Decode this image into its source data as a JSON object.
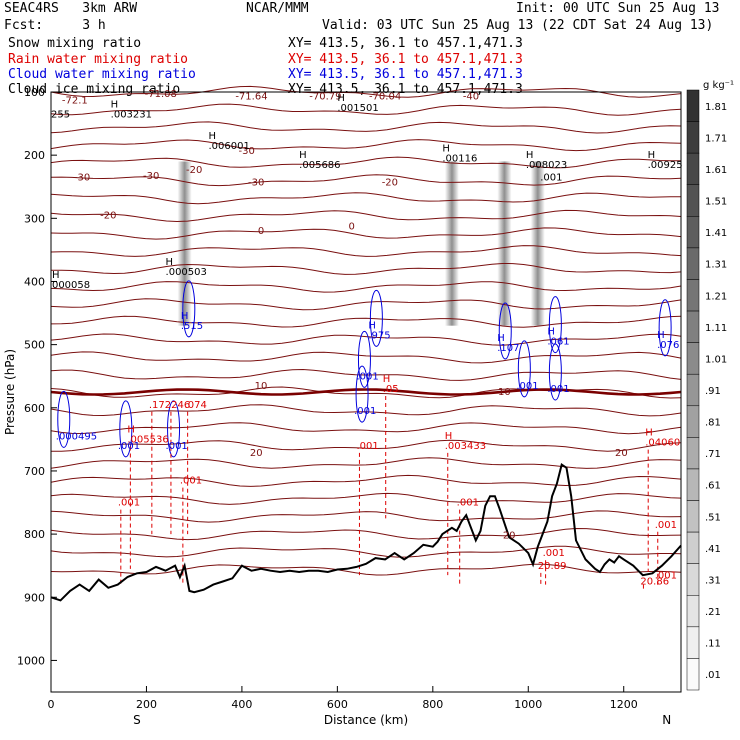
{
  "header": {
    "model": "SEAC4RS   3km ARW",
    "forecast": "Fcst:     3 h",
    "center": "NCAR/MMM",
    "init": "Init: 00 UTC Sun 25 Aug 13",
    "valid": "Valid: 03 UTC Sun 25 Aug 13 (22 CDT Sat 24 Aug 13)",
    "xy": "XY= 413.5, 36.1 to 457.1,471.3"
  },
  "legend": [
    {
      "text": "Snow mixing ratio",
      "color": "#000000"
    },
    {
      "text": "Rain water mixing ratio",
      "color": "#dd0000"
    },
    {
      "text": "Cloud water mixing ratio",
      "color": "#0000dd"
    },
    {
      "text": "Cloud ice mixing ratio",
      "color": "#000000"
    }
  ],
  "colorbar": {
    "unit": "g kg⁻¹",
    "levels": [
      "1.81",
      "1.71",
      "1.61",
      "1.51",
      "1.41",
      "1.31",
      "1.21",
      "1.11",
      "1.01",
      ".91",
      ".81",
      ".71",
      ".61",
      ".51",
      ".41",
      ".31",
      ".21",
      ".11",
      ".01"
    ]
  },
  "chart_data": {
    "type": "cross-section",
    "xlabel": "Distance (km)",
    "ylabel": "Pressure (hPa)",
    "xlim": [
      0,
      1320
    ],
    "ylim": [
      1050,
      100
    ],
    "x_ticks": [
      "0",
      "200",
      "400",
      "600",
      "800",
      "1000",
      "1200"
    ],
    "y_ticks": [
      "100",
      "200",
      "300",
      "400",
      "500",
      "600",
      "700",
      "800",
      "900",
      "1000"
    ],
    "x_end_labels": {
      "left": "S",
      "right": "N"
    },
    "isotherm_labels": [
      "-72.1",
      "-71.08",
      "-71.64",
      "-70.79",
      "-70.04",
      "-40",
      "-30",
      "-30",
      "-30",
      "-30",
      "-20",
      "-20",
      "-20",
      "0",
      "0",
      "10",
      "10",
      "20",
      "20",
      "20"
    ],
    "temperature_labels_deg_c": [
      -70,
      -40,
      -30,
      -20,
      0,
      10,
      20
    ],
    "freezing_level_hpa": 575,
    "cloud_ice_maxima": [
      {
        "label": "H",
        "value": ".003231",
        "x_km": 125,
        "p_hpa": 140
      },
      {
        "label": "H",
        "value": ".001501",
        "x_km": 600,
        "p_hpa": 130
      },
      {
        "label": "H",
        "value": ".006001",
        "x_km": 330,
        "p_hpa": 190
      },
      {
        "label": "H",
        "value": ".005686",
        "x_km": 520,
        "p_hpa": 220
      },
      {
        "label": "H",
        "value": ".00116",
        "x_km": 820,
        "p_hpa": 210
      },
      {
        "label": "H",
        "value": ".008023",
        "x_km": 995,
        "p_hpa": 220
      },
      {
        "label": "H",
        "value": ".00925",
        "x_km": 1250,
        "p_hpa": 220
      },
      {
        "label": "H",
        "value": ".000503",
        "x_km": 240,
        "p_hpa": 390
      },
      {
        "label": "H",
        "value": "000058",
        "x_km": 2,
        "p_hpa": 410
      },
      {
        "label": "",
        "value": ".001",
        "x_km": 1025,
        "p_hpa": 240
      },
      {
        "label": "",
        "value": "255",
        "x_km": 0,
        "p_hpa": 140
      }
    ],
    "cloud_water_maxima": [
      {
        "label": "H",
        "value": ".515",
        "x_km": 272,
        "p_hpa": 475
      },
      {
        "label": "H",
        "value": ".975",
        "x_km": 665,
        "p_hpa": 490
      },
      {
        "label": "H",
        "value": ".107",
        "x_km": 935,
        "p_hpa": 510
      },
      {
        "label": "H",
        "value": ".061",
        "x_km": 1040,
        "p_hpa": 500
      },
      {
        "label": "H",
        "value": ".076",
        "x_km": 1270,
        "p_hpa": 505
      },
      {
        "label": "",
        "value": ".001",
        "x_km": 640,
        "p_hpa": 555
      },
      {
        "label": "",
        "value": ".001",
        "x_km": 975,
        "p_hpa": 570
      },
      {
        "label": "",
        "value": ".001",
        "x_km": 1040,
        "p_hpa": 575
      },
      {
        "label": "",
        "value": ".001",
        "x_km": 635,
        "p_hpa": 610
      },
      {
        "label": "",
        "value": ".000495",
        "x_km": 10,
        "p_hpa": 650
      },
      {
        "label": "",
        "value": ".001",
        "x_km": 140,
        "p_hpa": 665
      },
      {
        "label": "",
        "value": ".001",
        "x_km": 240,
        "p_hpa": 665
      }
    ],
    "rain_water_maxima": [
      {
        "label": "",
        "value": ".172",
        "x_km": 205,
        "p_hpa": 600
      },
      {
        "label": "",
        "value": ".246",
        "x_km": 245,
        "p_hpa": 600
      },
      {
        "label": "",
        "value": ".074",
        "x_km": 280,
        "p_hpa": 600
      },
      {
        "label": "H",
        "value": ".05",
        "x_km": 695,
        "p_hpa": 575
      },
      {
        "label": "H",
        "value": ".005536",
        "x_km": 160,
        "p_hpa": 655
      },
      {
        "label": "H",
        "value": ".003433",
        "x_km": 825,
        "p_hpa": 665
      },
      {
        "label": "H",
        "value": ".04060",
        "x_km": 1245,
        "p_hpa": 660
      },
      {
        "label": "",
        "value": ".001",
        "x_km": 640,
        "p_hpa": 665
      },
      {
        "label": "",
        "value": ".001",
        "x_km": 270,
        "p_hpa": 720
      },
      {
        "label": "",
        "value": ".001",
        "x_km": 140,
        "p_hpa": 755
      },
      {
        "label": "",
        "value": ".001",
        "x_km": 850,
        "p_hpa": 755
      },
      {
        "label": "",
        "value": ".001",
        "x_km": 1030,
        "p_hpa": 835
      },
      {
        "label": "",
        "value": ".001",
        "x_km": 1265,
        "p_hpa": 790
      },
      {
        "label": "",
        "value": ".001",
        "x_km": 1265,
        "p_hpa": 870
      },
      {
        "label": "",
        "value": "20.89",
        "x_km": 1020,
        "p_hpa": 855
      },
      {
        "label": "",
        "value": "20.86",
        "x_km": 1235,
        "p_hpa": 880
      }
    ],
    "terrain_surface_hpa": [
      [
        0,
        900
      ],
      [
        20,
        905
      ],
      [
        40,
        890
      ],
      [
        60,
        880
      ],
      [
        80,
        890
      ],
      [
        100,
        872
      ],
      [
        120,
        885
      ],
      [
        140,
        880
      ],
      [
        160,
        868
      ],
      [
        180,
        862
      ],
      [
        200,
        860
      ],
      [
        220,
        852
      ],
      [
        240,
        858
      ],
      [
        260,
        850
      ],
      [
        270,
        868
      ],
      [
        280,
        850
      ],
      [
        290,
        890
      ],
      [
        300,
        892
      ],
      [
        320,
        888
      ],
      [
        340,
        880
      ],
      [
        360,
        875
      ],
      [
        380,
        870
      ],
      [
        400,
        850
      ],
      [
        420,
        858
      ],
      [
        440,
        855
      ],
      [
        460,
        858
      ],
      [
        480,
        860
      ],
      [
        500,
        858
      ],
      [
        520,
        860
      ],
      [
        540,
        858
      ],
      [
        560,
        858
      ],
      [
        580,
        860
      ],
      [
        600,
        856
      ],
      [
        620,
        855
      ],
      [
        640,
        852
      ],
      [
        660,
        847
      ],
      [
        680,
        838
      ],
      [
        700,
        840
      ],
      [
        720,
        830
      ],
      [
        740,
        840
      ],
      [
        760,
        830
      ],
      [
        780,
        817
      ],
      [
        800,
        820
      ],
      [
        810,
        812
      ],
      [
        820,
        800
      ],
      [
        840,
        790
      ],
      [
        850,
        795
      ],
      [
        860,
        780
      ],
      [
        870,
        770
      ],
      [
        880,
        790
      ],
      [
        890,
        810
      ],
      [
        900,
        795
      ],
      [
        910,
        755
      ],
      [
        920,
        740
      ],
      [
        930,
        740
      ],
      [
        940,
        760
      ],
      [
        960,
        805
      ],
      [
        980,
        815
      ],
      [
        1000,
        830
      ],
      [
        1010,
        848
      ],
      [
        1020,
        820
      ],
      [
        1030,
        800
      ],
      [
        1040,
        780
      ],
      [
        1050,
        740
      ],
      [
        1060,
        720
      ],
      [
        1070,
        690
      ],
      [
        1080,
        695
      ],
      [
        1090,
        740
      ],
      [
        1100,
        810
      ],
      [
        1120,
        840
      ],
      [
        1140,
        855
      ],
      [
        1150,
        860
      ],
      [
        1160,
        848
      ],
      [
        1170,
        840
      ],
      [
        1180,
        845
      ],
      [
        1190,
        835
      ],
      [
        1200,
        840
      ],
      [
        1220,
        850
      ],
      [
        1240,
        865
      ],
      [
        1260,
        862
      ],
      [
        1280,
        850
      ],
      [
        1300,
        835
      ],
      [
        1320,
        818
      ]
    ],
    "snow_maxima_x_km": [
      280,
      840,
      950,
      1020
    ],
    "grid": false
  }
}
